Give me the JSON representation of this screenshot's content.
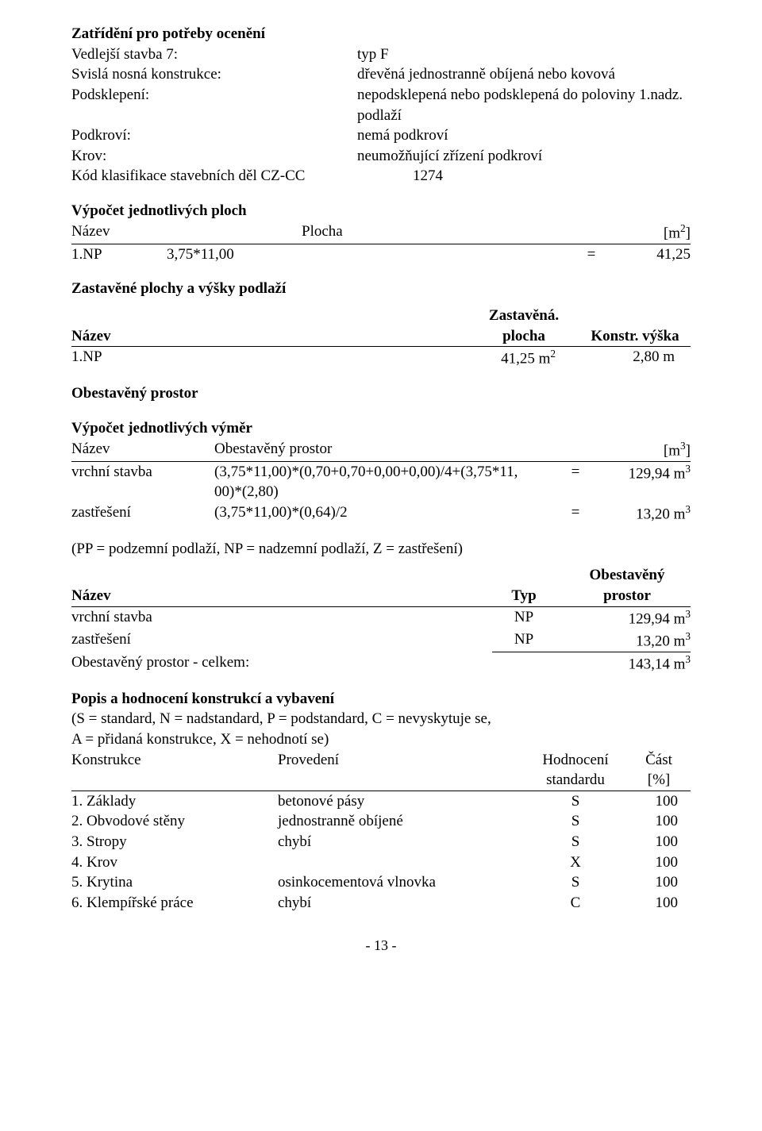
{
  "title": "Zatřídění pro potřeby ocenění",
  "attrs": [
    {
      "label": "Vedlejší stavba 7:",
      "value": "typ F"
    },
    {
      "label": "Svislá nosná konstrukce:",
      "value": "dřevěná jednostranně obíjená nebo kovová"
    },
    {
      "label": "Podsklepení:",
      "value": "nepodsklepená nebo podsklepená do poloviny 1.nadz. podlaží"
    },
    {
      "label": "Podkroví:",
      "value": "nemá podkroví"
    },
    {
      "label": "Krov:",
      "value": "neumožňující zřízení podkroví"
    },
    {
      "label": "Kód klasifikace stavebních děl CZ-CC",
      "value": "  1274"
    }
  ],
  "ploch": {
    "title": "Výpočet jednotlivých ploch",
    "head": {
      "c1": "Název",
      "c2": "Plocha",
      "c3_html": "[m<sup>2</sup>]"
    },
    "row": {
      "c1": "1.NP",
      "c2": "3,75*11,00",
      "eq": "=",
      "val": "41,25"
    }
  },
  "zp": {
    "title": "Zastavěné plochy a výšky podlaží",
    "head": {
      "c1": "Název",
      "c2a": "Zastavěná.",
      "c2b": "plocha",
      "c3": "Konstr. výška"
    },
    "row": {
      "c1": "1.NP",
      "c2_html": "41,25 m<sup>2</sup>",
      "c3": "2,80 m"
    }
  },
  "op_title": "Obestavěný prostor",
  "vv": {
    "title": "Výpočet jednotlivých výměr",
    "head": {
      "c1": "Název",
      "c2": "Obestavěný prostor",
      "c3_html": "[m<sup>3</sup>]"
    },
    "rows": [
      {
        "c1": "vrchní stavba",
        "c2a": "(3,75*11,00)*(0,70+0,70+0,00+0,00)/4+(3,75*11,",
        "c2b": "00)*(2,80)",
        "eq": "=",
        "val_html": "129,94 m<sup>3</sup>"
      },
      {
        "c1": "zastřešení",
        "c2a": "(3,75*11,00)*(0,64)/2",
        "c2b": "",
        "eq": "=",
        "val_html": "13,20 m<sup>3</sup>"
      }
    ]
  },
  "pp_note": "(PP = podzemní podlaží, NP = nadzemní podlaží, Z = zastřešení)",
  "op_sum": {
    "head": {
      "c1": "Název",
      "c2": "Typ",
      "c3a": "Obestavěný",
      "c3b": "prostor"
    },
    "rows": [
      {
        "c1": "vrchní stavba",
        "c2": "NP",
        "c3_html": "129,94 m<sup>3</sup>"
      },
      {
        "c1": "zastřešení",
        "c2": "NP",
        "c3_html": "13,20 m<sup>3</sup>"
      }
    ],
    "total": {
      "label": "Obestavěný prostor - celkem:",
      "val_html": "143,14 m<sup>3</sup>"
    }
  },
  "kon": {
    "title": "Popis a hodnocení konstrukcí a vybavení",
    "note1": "(S = standard, N = nadstandard, P = podstandard, C = nevyskytuje se,",
    "note2": "A = přidaná konstrukce, X = nehodnotí se)",
    "head": {
      "c1": "Konstrukce",
      "c2": "Provedení",
      "c3a": "Hodnocení",
      "c3b": "standardu",
      "c4a": "Část",
      "c4b": "[%]"
    },
    "rows": [
      {
        "c1": "1. Základy",
        "c2": "betonové pásy",
        "c3": "S",
        "c4": "100"
      },
      {
        "c1": "2. Obvodové stěny",
        "c2": "jednostranně obíjené",
        "c3": "S",
        "c4": "100"
      },
      {
        "c1": "3. Stropy",
        "c2": "chybí",
        "c3": "S",
        "c4": "100"
      },
      {
        "c1": "4. Krov",
        "c2": "",
        "c3": "X",
        "c4": "100"
      },
      {
        "c1": "5. Krytina",
        "c2": "osinkocementová vlnovka",
        "c3": "S",
        "c4": "100"
      },
      {
        "c1": "6. Klempířské práce",
        "c2": "chybí",
        "c3": "C",
        "c4": "100"
      }
    ]
  },
  "page_num": "- 13 -"
}
